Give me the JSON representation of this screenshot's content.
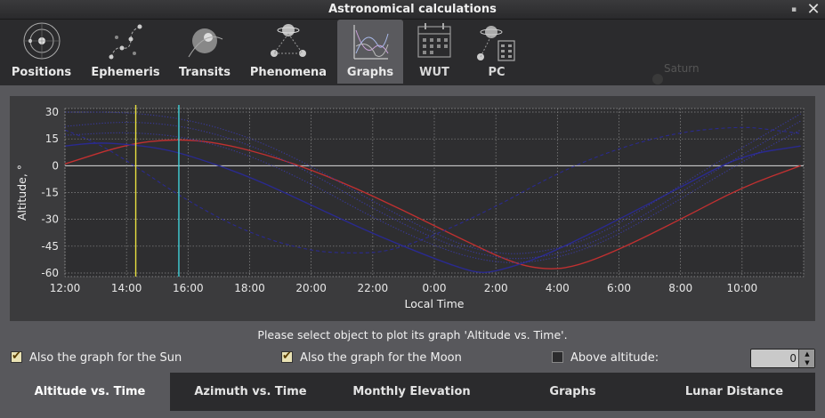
{
  "window": {
    "title": "Astronomical calculations"
  },
  "top_tabs": [
    {
      "label": "Positions",
      "active": false
    },
    {
      "label": "Ephemeris",
      "active": false
    },
    {
      "label": "Transits",
      "active": false
    },
    {
      "label": "Phenomena",
      "active": false
    },
    {
      "label": "Graphs",
      "active": true
    },
    {
      "label": "WUT",
      "active": false
    },
    {
      "label": "PC",
      "active": false
    }
  ],
  "background_label": "Saturn",
  "chart_data": {
    "type": "line",
    "ylabel": "Altitude, °",
    "xlabel": "Local Time",
    "ylim": [
      -62,
      32
    ],
    "xlim_hours": [
      12,
      36
    ],
    "y_ticks": [
      "30",
      "15",
      "0",
      "-15",
      "-30",
      "-45",
      "-60"
    ],
    "x_ticks": [
      "12:00",
      "14:00",
      "16:00",
      "18:00",
      "20:00",
      "22:00",
      "0:00",
      "2:00",
      "4:00",
      "6:00",
      "8:00",
      "10:00"
    ],
    "grid": true,
    "markers": [
      {
        "name": "current time",
        "hour": 14.3,
        "color": "#e8e040"
      },
      {
        "name": "Moon",
        "hour": 15.7,
        "color": "#40d0d8"
      }
    ],
    "series": [
      {
        "style": "solid",
        "color": "#c03030",
        "x": [
          12,
          14,
          15.5,
          17,
          19,
          21,
          23,
          1,
          2.5,
          3.5,
          4.5,
          6,
          8,
          10,
          11.9
        ],
        "y": [
          1,
          12,
          15,
          13,
          4,
          -9,
          -25,
          -42,
          -54,
          -58,
          -57,
          -47,
          -30,
          -12,
          0
        ]
      },
      {
        "style": "solid",
        "color": "#2a2a90",
        "x": [
          12,
          13,
          14,
          15,
          16,
          18,
          20,
          22,
          0,
          1,
          1.5,
          2,
          3,
          4,
          6,
          8,
          10,
          11.9
        ],
        "y": [
          11,
          13,
          12,
          10,
          6,
          -6,
          -22,
          -38,
          -52,
          -58,
          -60,
          -59,
          -54,
          -47,
          -30,
          -12,
          6,
          11
        ]
      },
      {
        "style": "dashed",
        "color": "#2a2a90",
        "x": [
          12,
          13,
          14,
          16,
          18,
          20,
          21.5,
          22.5,
          0,
          2,
          4,
          6,
          8,
          10,
          11,
          11.9
        ],
        "y": [
          20,
          13,
          3,
          -20,
          -38,
          -48,
          -49,
          -48,
          -39,
          -23,
          -4,
          10,
          19,
          22,
          20,
          18
        ]
      },
      {
        "style": "dotted",
        "color": "#3a3aa0",
        "x": [
          12,
          14,
          16,
          18,
          20,
          22,
          0,
          1.5,
          3,
          5,
          7,
          9,
          11,
          11.9
        ],
        "y": [
          30,
          30,
          26,
          16,
          0,
          -20,
          -38,
          -48,
          -50,
          -42,
          -22,
          0,
          20,
          29
        ]
      },
      {
        "style": "dotted",
        "color": "#3a3aa0",
        "x": [
          12,
          14,
          16,
          18,
          20,
          22,
          0,
          1.5,
          3,
          5,
          7,
          9,
          11,
          11.9
        ],
        "y": [
          22,
          25,
          22,
          12,
          -4,
          -24,
          -41,
          -50,
          -53,
          -45,
          -26,
          -4,
          16,
          25
        ]
      },
      {
        "style": "dotted",
        "color": "#3a3aa0",
        "x": [
          12,
          14,
          16,
          18,
          20,
          22,
          0,
          1.5,
          3,
          5,
          7,
          9,
          11,
          11.9
        ],
        "y": [
          17,
          19,
          16,
          6,
          -10,
          -29,
          -45,
          -53,
          -55,
          -47,
          -29,
          -8,
          12,
          20
        ]
      }
    ]
  },
  "hint": "Please select object to plot its graph 'Altitude vs. Time'.",
  "options": {
    "sun_label": "Also the graph for the Sun",
    "sun_checked": true,
    "moon_label": "Also the graph for the Moon",
    "moon_checked": true,
    "above_label": "Above altitude:",
    "above_checked": false,
    "above_value": "0"
  },
  "bottom_tabs": [
    {
      "label": "Altitude vs. Time",
      "active": true
    },
    {
      "label": "Azimuth vs. Time",
      "active": false
    },
    {
      "label": "Monthly Elevation",
      "active": false
    },
    {
      "label": "Graphs",
      "active": false
    },
    {
      "label": "Lunar Distance",
      "active": false
    }
  ]
}
